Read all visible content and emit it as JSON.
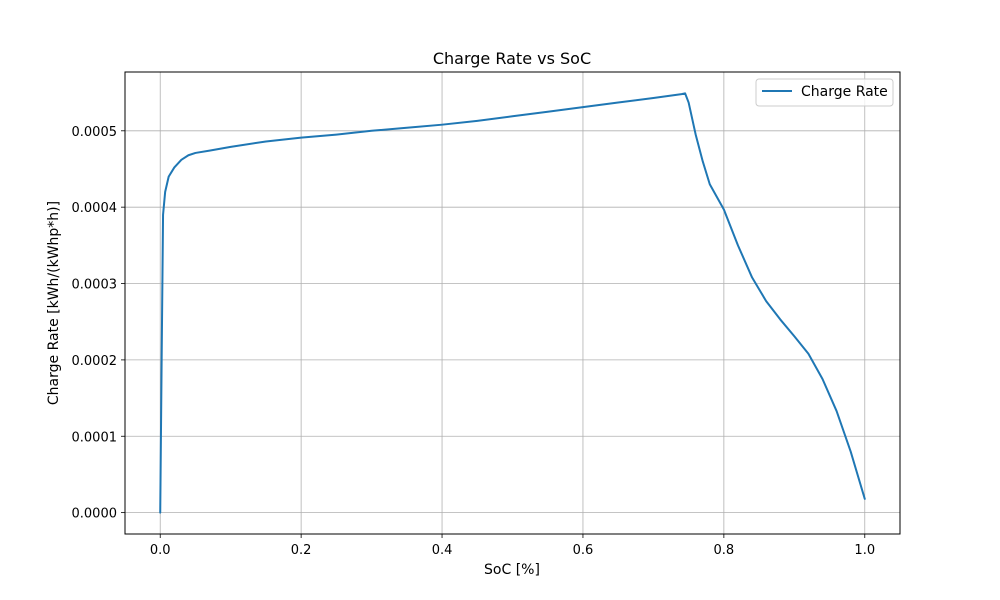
{
  "chart_data": {
    "type": "line",
    "title": "Charge Rate vs SoC",
    "xlabel": "SoC [%]",
    "ylabel": "Charge Rate [kWh/(kWhp*h)]",
    "xlim": [
      -0.05,
      1.05
    ],
    "ylim": [
      -2.8e-05,
      0.000577
    ],
    "x_ticks": [
      "0.0",
      "0.2",
      "0.4",
      "0.6",
      "0.8",
      "1.0"
    ],
    "y_ticks": [
      "0.0000",
      "0.0001",
      "0.0002",
      "0.0003",
      "0.0004",
      "0.0005"
    ],
    "grid": true,
    "legend_position": "top-right",
    "series": [
      {
        "name": "Charge Rate",
        "color": "#1f77b4",
        "x": [
          0.0,
          0.002,
          0.004,
          0.007,
          0.012,
          0.02,
          0.03,
          0.04,
          0.05,
          0.07,
          0.1,
          0.15,
          0.2,
          0.25,
          0.3,
          0.35,
          0.4,
          0.45,
          0.5,
          0.55,
          0.6,
          0.65,
          0.7,
          0.74,
          0.745,
          0.75,
          0.76,
          0.77,
          0.78,
          0.8,
          0.82,
          0.84,
          0.86,
          0.88,
          0.9,
          0.92,
          0.94,
          0.96,
          0.98,
          1.0
        ],
        "y": [
          0.0,
          0.0002,
          0.00039,
          0.00042,
          0.00044,
          0.000452,
          0.000462,
          0.000468,
          0.000471,
          0.000474,
          0.000479,
          0.000486,
          0.000491,
          0.000495,
          0.0005,
          0.000504,
          0.000508,
          0.000513,
          0.000519,
          0.000525,
          0.000531,
          0.000537,
          0.000543,
          0.000548,
          0.000549,
          0.000537,
          0.000495,
          0.00046,
          0.00043,
          0.000397,
          0.00035,
          0.000308,
          0.000277,
          0.000253,
          0.000231,
          0.000208,
          0.000175,
          0.000133,
          8e-05,
          1.8e-05
        ]
      }
    ]
  }
}
